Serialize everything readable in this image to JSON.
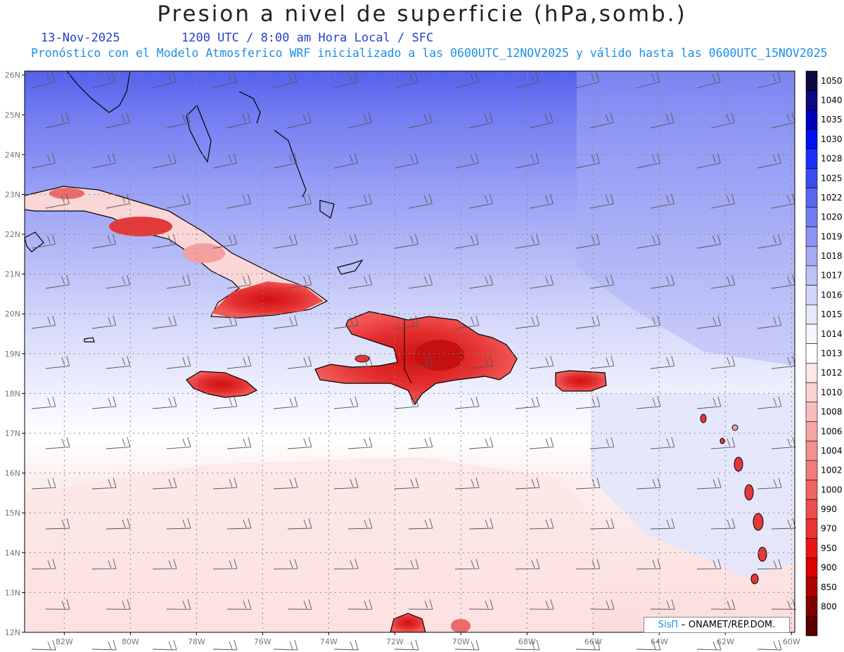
{
  "title": "Presion a nivel de superficie (hPa,somb.)",
  "date": "13-Nov-2025",
  "time_info": "1200 UTC / 8:00 am Hora Local / SFC",
  "description": "Pronóstico con el Modelo Atmosferico WRF inicializado a las 0600UTC_12NOV2025 y válido hasta las  0600UTC_15NOV2025",
  "lat_labels": [
    "26N",
    "25N",
    "24N",
    "23N",
    "22N",
    "21N",
    "20N",
    "19N",
    "18N",
    "17N",
    "16N",
    "15N",
    "14N",
    "13N",
    "12N"
  ],
  "lon_labels": [
    "82W",
    "80W",
    "78W",
    "76W",
    "74W",
    "72W",
    "70W",
    "68W",
    "66W",
    "64W",
    "62W",
    "60W"
  ],
  "colorbar": [
    {
      "label": "1050",
      "color": "#0a0a40"
    },
    {
      "label": "1040",
      "color": "#0a0a80"
    },
    {
      "label": "1035",
      "color": "#0000b8"
    },
    {
      "label": "1030",
      "color": "#0010f0"
    },
    {
      "label": "1028",
      "color": "#1a30ff"
    },
    {
      "label": "1025",
      "color": "#3a4cf0"
    },
    {
      "label": "1022",
      "color": "#5a66f0"
    },
    {
      "label": "1020",
      "color": "#737df2"
    },
    {
      "label": "1019",
      "color": "#8d95f4"
    },
    {
      "label": "1018",
      "color": "#a5abf6"
    },
    {
      "label": "1017",
      "color": "#bcc1f8"
    },
    {
      "label": "1016",
      "color": "#d2d5fa"
    },
    {
      "label": "1015",
      "color": "#e6e8fc"
    },
    {
      "label": "1014",
      "color": "#f6f7fe"
    },
    {
      "label": "1013",
      "color": "#ffffff"
    },
    {
      "label": "1012",
      "color": "#fde8e8"
    },
    {
      "label": "1010",
      "color": "#fbd2d2"
    },
    {
      "label": "1008",
      "color": "#f8bcbc"
    },
    {
      "label": "1006",
      "color": "#f6a6a6"
    },
    {
      "label": "1004",
      "color": "#f49090"
    },
    {
      "label": "1002",
      "color": "#f27a7a"
    },
    {
      "label": "1000",
      "color": "#f06464"
    },
    {
      "label": "990",
      "color": "#ee4e4e"
    },
    {
      "label": "970",
      "color": "#ec3232"
    },
    {
      "label": "950",
      "color": "#ea1414"
    },
    {
      "label": "900",
      "color": "#dc0000"
    },
    {
      "label": "850",
      "color": "#b00000"
    },
    {
      "label": "800",
      "color": "#800000"
    },
    {
      "label": "",
      "color": "#5a0000"
    }
  ],
  "credit": {
    "brand": "SisΠ",
    "text": " – ONAMET/REP.DOM."
  }
}
